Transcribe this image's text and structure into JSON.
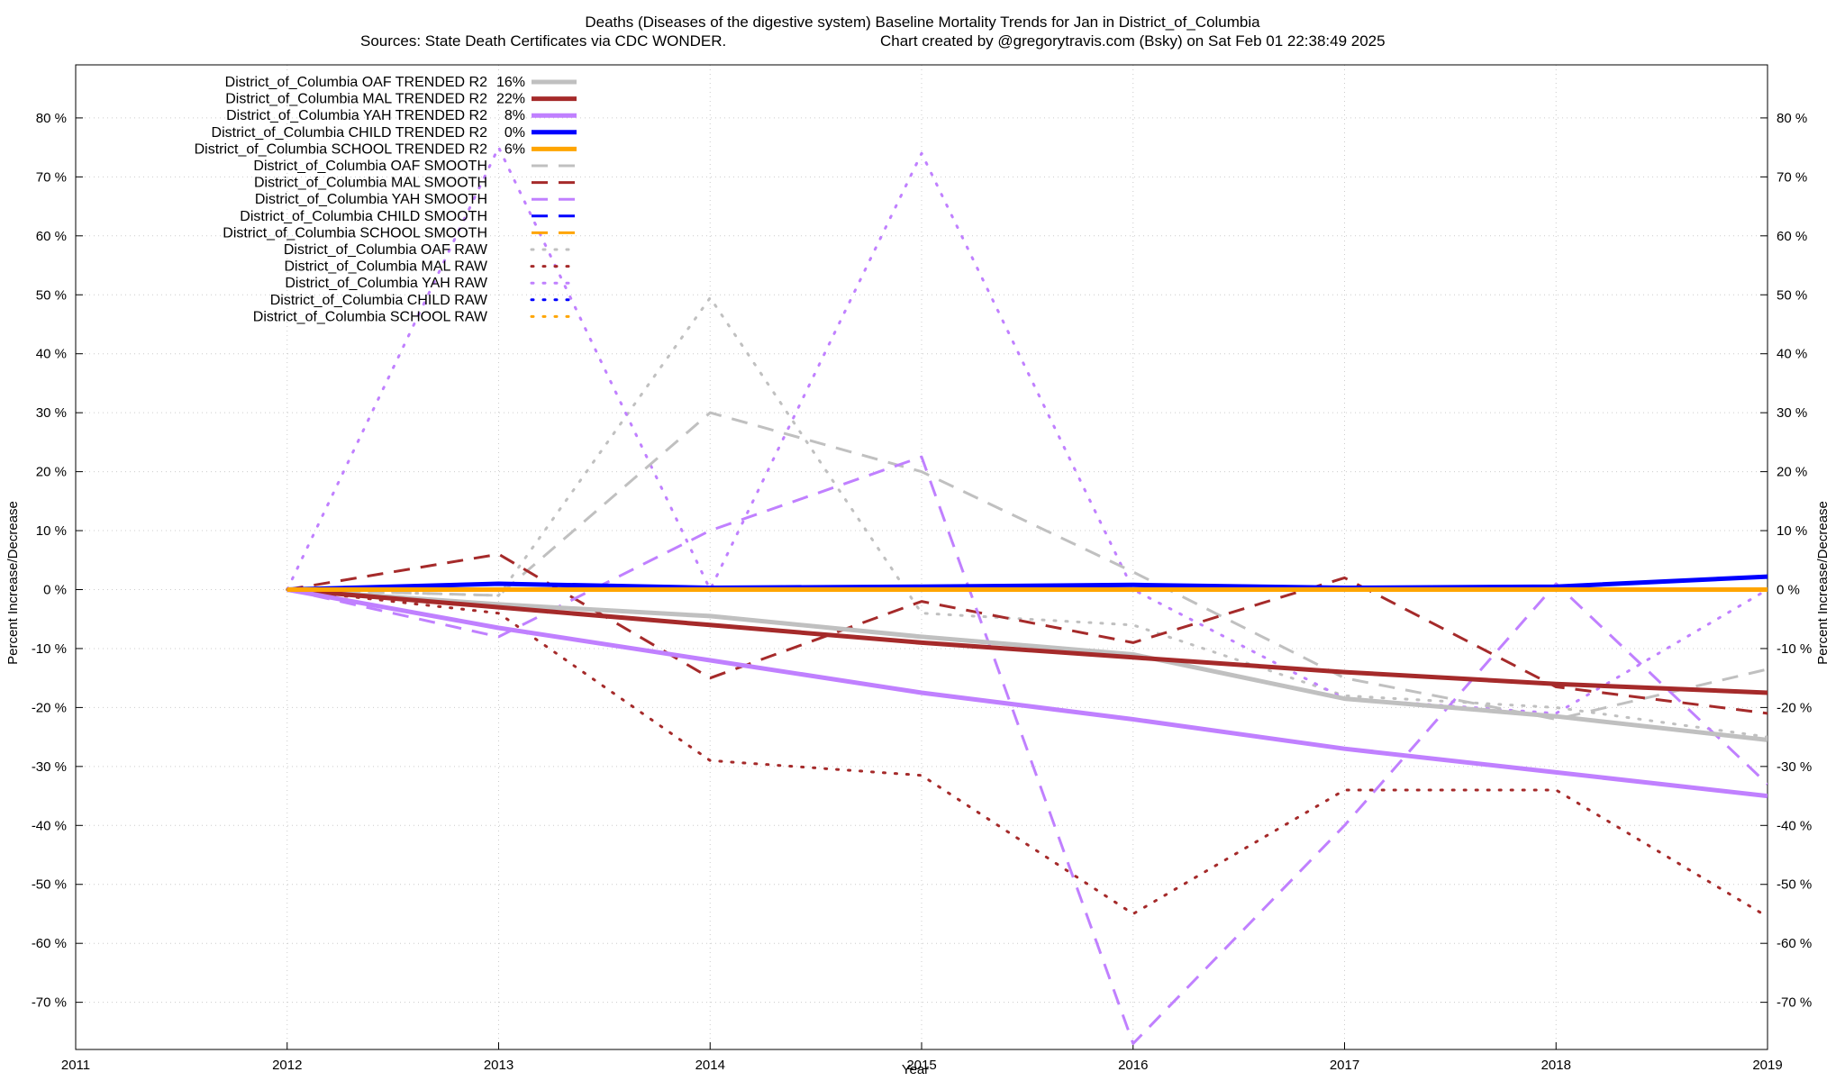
{
  "chart_data": {
    "type": "line",
    "title_line1": "Deaths (Diseases of the digestive system)  Baseline Mortality Trends for Jan in District_of_Columbia",
    "title_line2_left": "Sources: State Death Certificates via CDC WONDER.",
    "title_line2_right": "Chart created by @gregorytravis.com (Bsky) on Sat Feb 01 22:38:49 2025",
    "xlabel": "Year",
    "ylabel": "Percent Increase/Decrease",
    "xlim": [
      2011,
      2019
    ],
    "ylim": [
      -78,
      89
    ],
    "x_ticks": [
      2011,
      2012,
      2013,
      2014,
      2015,
      2016,
      2017,
      2018,
      2019
    ],
    "x_tick_labels": [
      "2011",
      "2012",
      "2013",
      "2014",
      "2015",
      "2016",
      "2017",
      "2018",
      "2019"
    ],
    "y_ticks": [
      80,
      70,
      60,
      50,
      40,
      30,
      20,
      10,
      0,
      -10,
      -20,
      -30,
      -40,
      -50,
      -60,
      -70
    ],
    "y_tick_labels": [
      "80 %",
      "70 %",
      "60 %",
      "50 %",
      "40 %",
      "30 %",
      "20 %",
      "10 %",
      "0 %",
      "-10 %",
      "-20 %",
      "-30 %",
      "-40 %",
      "-50 %",
      "-60 %",
      "-70 %"
    ],
    "grid": true,
    "legend_position": "top-left",
    "series": [
      {
        "name": "District_of_Columbia OAF TRENDED R2",
        "r2": "16%",
        "style": "solid",
        "color": "#c0c0c0",
        "x": [
          2012,
          2013,
          2014,
          2015,
          2016,
          2017,
          2018,
          2019
        ],
        "y": [
          0,
          -2.5,
          -4.5,
          -8,
          -11,
          -18.5,
          -21.5,
          -25.5
        ]
      },
      {
        "name": "District_of_Columbia MAL TRENDED R2",
        "r2": "22%",
        "style": "solid",
        "color": "#a52a2a",
        "x": [
          2012,
          2013,
          2014,
          2015,
          2016,
          2017,
          2018,
          2019
        ],
        "y": [
          0,
          -3,
          -6,
          -9,
          -11.5,
          -14,
          -16,
          -17.5
        ]
      },
      {
        "name": "District_of_Columbia YAH TRENDED R2",
        "r2": "8%",
        "style": "solid",
        "color": "#c080ff",
        "x": [
          2012,
          2013,
          2014,
          2015,
          2016,
          2017,
          2018,
          2019
        ],
        "y": [
          0,
          -6.5,
          -12,
          -17.5,
          -22,
          -27,
          -31,
          -35
        ]
      },
      {
        "name": "District_of_Columbia CHILD TRENDED R2",
        "r2": "0%",
        "style": "solid",
        "color": "#0000ff",
        "x": [
          2012,
          2013,
          2014,
          2015,
          2016,
          2017,
          2018,
          2019
        ],
        "y": [
          0,
          1,
          0.3,
          0.5,
          0.8,
          0.3,
          0.5,
          2.2
        ]
      },
      {
        "name": "District_of_Columbia SCHOOL TRENDED R2",
        "r2": "6%",
        "style": "solid",
        "color": "#ffa500",
        "x": [
          2012,
          2013,
          2014,
          2015,
          2016,
          2017,
          2018,
          2019
        ],
        "y": [
          0,
          0,
          0,
          0,
          0,
          0,
          0,
          0
        ]
      },
      {
        "name": "District_of_Columbia OAF SMOOTH",
        "r2": "",
        "style": "dashed",
        "color": "#c0c0c0",
        "x": [
          2012,
          2013,
          2014,
          2015,
          2016,
          2017,
          2018,
          2019
        ],
        "y": [
          0,
          -1,
          30,
          20,
          3,
          -15,
          -22,
          -13.5
        ]
      },
      {
        "name": "District_of_Columbia MAL SMOOTH",
        "r2": "",
        "style": "dashed",
        "color": "#a52a2a",
        "x": [
          2012,
          2013,
          2014,
          2015,
          2016,
          2017,
          2018,
          2019
        ],
        "y": [
          0,
          6,
          -15,
          -2,
          -9,
          2,
          -16.5,
          -21
        ]
      },
      {
        "name": "District_of_Columbia YAH SMOOTH",
        "r2": "",
        "style": "dashed",
        "color": "#c080ff",
        "x": [
          2012,
          2013,
          2014,
          2015,
          2016,
          2017,
          2018,
          2019
        ],
        "y": [
          0,
          -8,
          10,
          22.5,
          -77,
          -40,
          1,
          -33
        ]
      },
      {
        "name": "District_of_Columbia CHILD SMOOTH",
        "r2": "",
        "style": "dashed",
        "color": "#0000ff",
        "x": [
          2012,
          2013,
          2014,
          2015,
          2016,
          2017,
          2018,
          2019
        ],
        "y": [
          0,
          0,
          0,
          0,
          0,
          0,
          0,
          0
        ]
      },
      {
        "name": "District_of_Columbia SCHOOL SMOOTH",
        "r2": "",
        "style": "dashed",
        "color": "#ffa500",
        "x": [
          2012,
          2013,
          2014,
          2015,
          2016,
          2017,
          2018,
          2019
        ],
        "y": [
          0,
          0,
          0,
          0,
          0,
          0,
          0,
          0
        ]
      },
      {
        "name": "District_of_Columbia OAF RAW",
        "r2": "",
        "style": "dotted",
        "color": "#c0c0c0",
        "x": [
          2012,
          2013,
          2014,
          2015,
          2016,
          2017,
          2018,
          2019
        ],
        "y": [
          0,
          -1,
          49.5,
          -4,
          -6,
          -18,
          -20,
          -25
        ]
      },
      {
        "name": "District_of_Columbia MAL RAW",
        "r2": "",
        "style": "dotted",
        "color": "#a52a2a",
        "x": [
          2012,
          2013,
          2014,
          2015,
          2016,
          2017,
          2018,
          2019
        ],
        "y": [
          0,
          -4,
          -29,
          -31.5,
          -55,
          -34,
          -34,
          -55.5
        ]
      },
      {
        "name": "District_of_Columbia YAH RAW",
        "r2": "",
        "style": "dotted",
        "color": "#c080ff",
        "x": [
          2012,
          2013,
          2014,
          2015,
          2016,
          2017,
          2018,
          2019
        ],
        "y": [
          0,
          75,
          0,
          74,
          0,
          -18.5,
          -21,
          0
        ]
      },
      {
        "name": "District_of_Columbia CHILD RAW",
        "r2": "",
        "style": "dotted",
        "color": "#0000ff",
        "x": [
          2012,
          2013,
          2014,
          2015,
          2016,
          2017,
          2018,
          2019
        ],
        "y": [
          0,
          0,
          0,
          0,
          0,
          0,
          0,
          0
        ]
      },
      {
        "name": "District_of_Columbia SCHOOL RAW",
        "r2": "",
        "style": "dotted",
        "color": "#ffa500",
        "x": [
          2012,
          2013,
          2014,
          2015,
          2016,
          2017,
          2018,
          2019
        ],
        "y": [
          0,
          0,
          0,
          0,
          0,
          0,
          0,
          0
        ]
      }
    ]
  }
}
